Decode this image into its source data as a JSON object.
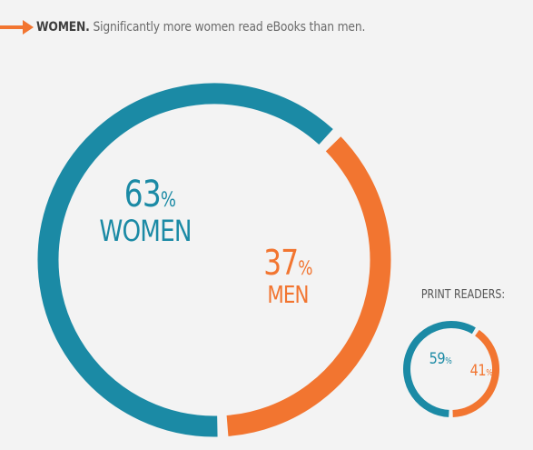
{
  "header": {
    "strong": "WOMEN.",
    "text": "Significantly more women read eBooks than men."
  },
  "colors": {
    "women": "#1b8aa5",
    "men": "#f27530",
    "arrow": "#f27530"
  },
  "icons": {
    "header_arrow": "arrow-right-icon"
  },
  "chart_data": [
    {
      "type": "pie",
      "title": "",
      "categories": [
        "WOMEN",
        "MEN"
      ],
      "values": [
        63,
        37
      ],
      "labels": [
        {
          "value": "63",
          "unit": "%",
          "name": "WOMEN"
        },
        {
          "value": "37",
          "unit": "%",
          "name": "MEN"
        }
      ]
    },
    {
      "type": "pie",
      "title": "PRINT READERS:",
      "categories": [
        "WOMEN",
        "MEN"
      ],
      "values": [
        59,
        41
      ],
      "labels": [
        {
          "value": "59",
          "unit": "%"
        },
        {
          "value": "41",
          "unit": "%"
        }
      ]
    }
  ]
}
